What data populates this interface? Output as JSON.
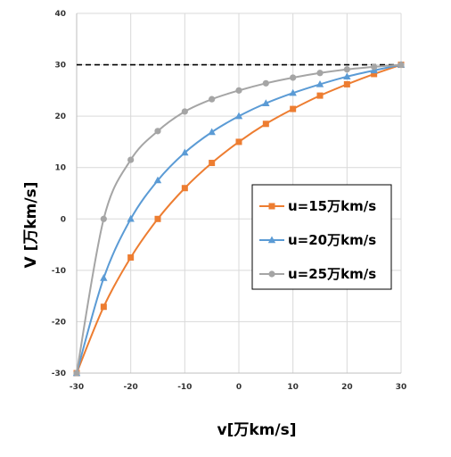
{
  "chart_data": {
    "type": "line",
    "xlabel": "v[万km/s]",
    "ylabel": "V [万km/s]",
    "xlim": [
      -30,
      30
    ],
    "ylim": [
      -30,
      40
    ],
    "xticks": [
      "-30",
      "-20",
      "-10",
      "0",
      "10",
      "20",
      "30"
    ],
    "yticks": [
      "-30",
      "-20",
      "-10",
      "0",
      "10",
      "20",
      "30",
      "40"
    ],
    "grid": true,
    "legend_position": "right-center",
    "reference_line": {
      "y": 30,
      "style": "dashed",
      "color": "#000000"
    },
    "series": [
      {
        "name": "u=15万km/s",
        "color": "#ED7D31",
        "marker": "square",
        "x": [
          -30,
          -25,
          -20,
          -15,
          -10,
          -5,
          0,
          5,
          10,
          15,
          20,
          25,
          30
        ],
        "y": [
          -30,
          -17.1,
          -7.5,
          0,
          6,
          10.9,
          15,
          18.5,
          21.4,
          24,
          26.2,
          28.2,
          30
        ]
      },
      {
        "name": "u=20万km/s",
        "color": "#5B9BD5",
        "marker": "triangle",
        "x": [
          -30,
          -25,
          -20,
          -15,
          -10,
          -5,
          0,
          5,
          10,
          15,
          20,
          25,
          30
        ],
        "y": [
          -30,
          -11.5,
          0,
          7.5,
          12.9,
          16.9,
          20,
          22.5,
          24.5,
          26.2,
          27.7,
          28.9,
          30
        ]
      },
      {
        "name": "u=25万km/s",
        "color": "#A5A5A5",
        "marker": "circle",
        "x": [
          -30,
          -25,
          -20,
          -15,
          -10,
          -5,
          0,
          5,
          10,
          15,
          20,
          25,
          30
        ],
        "y": [
          -30,
          0,
          11.5,
          17.1,
          20.9,
          23.3,
          25,
          26.4,
          27.5,
          28.4,
          29.1,
          29.6,
          30
        ]
      }
    ]
  }
}
